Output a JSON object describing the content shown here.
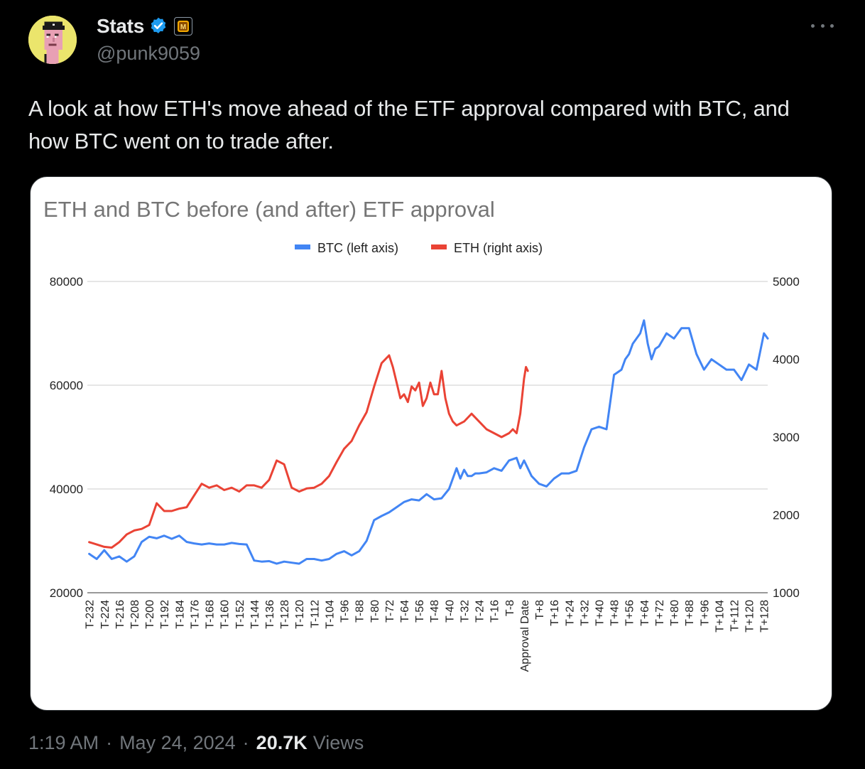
{
  "author": {
    "display_name": "Stats",
    "handle": "@punk9059",
    "verified_icon": "verified-badge-icon",
    "affiliate_icon": "affiliate-badge-icon",
    "affiliate_letter": "M"
  },
  "tweet": {
    "text": "A look at how ETH's move ahead of the ETF approval compared with BTC, and how BTC went on to trade after."
  },
  "meta": {
    "time": "1:19 AM",
    "date": "May 24, 2024",
    "separator": "·",
    "views_count": "20.7K",
    "views_label": "Views"
  },
  "colors": {
    "btc": "#4285f4",
    "eth": "#ea4335",
    "background": "#000000",
    "text": "#e7e9ea",
    "muted": "#71767b",
    "verified": "#1d9bf0"
  },
  "chart_data": {
    "type": "line",
    "title": "ETH and BTC before (and after) ETF approval",
    "legend": [
      "BTC (left axis)",
      "ETH (right axis)"
    ],
    "legend_position": "top",
    "grid": true,
    "x_range": [
      -233,
      130
    ],
    "left_axis": {
      "label": "BTC (left axis)",
      "ylim": [
        20000,
        80000
      ],
      "ticks": [
        "20000",
        "40000",
        "60000",
        "80000"
      ]
    },
    "right_axis": {
      "label": "ETH (right axis)",
      "ylim": [
        1000,
        5000
      ],
      "ticks": [
        "1000",
        "2000",
        "3000",
        "4000",
        "5000"
      ]
    },
    "x_tick_values": [
      -232,
      -224,
      -216,
      -208,
      -200,
      -192,
      -184,
      -176,
      -168,
      -160,
      -152,
      -144,
      -136,
      -128,
      -120,
      -112,
      -104,
      -96,
      -88,
      -80,
      -72,
      -64,
      -56,
      -48,
      -40,
      -32,
      -24,
      -16,
      -8,
      0,
      8,
      16,
      24,
      32,
      40,
      48,
      56,
      64,
      72,
      80,
      88,
      96,
      104,
      112,
      120,
      128
    ],
    "x_tick_labels": [
      "T-232",
      "T-224",
      "T-216",
      "T-208",
      "T-200",
      "T-192",
      "T-184",
      "T-176",
      "T-168",
      "T-160",
      "T-152",
      "T-144",
      "T-136",
      "T-128",
      "T-120",
      "T-112",
      "T-104",
      "T-96",
      "T-88",
      "T-80",
      "T-72",
      "T-64",
      "T-56",
      "T-48",
      "T-40",
      "T-32",
      "T-24",
      "T-16",
      "T-8",
      "Approval Date",
      "T+8",
      "T+16",
      "T+24",
      "T+32",
      "T+40",
      "T+48",
      "T+56",
      "T+64",
      "T+72",
      "T+80",
      "T+88",
      "T+96",
      "T+104",
      "T+112",
      "T+120",
      "T+128"
    ],
    "series": [
      {
        "name": "BTC (left axis)",
        "axis": "left",
        "x": [
          -232,
          -228,
          -224,
          -220,
          -216,
          -212,
          -208,
          -204,
          -200,
          -196,
          -192,
          -188,
          -184,
          -180,
          -176,
          -172,
          -168,
          -164,
          -160,
          -156,
          -152,
          -148,
          -144,
          -140,
          -136,
          -132,
          -128,
          -124,
          -120,
          -116,
          -112,
          -108,
          -104,
          -100,
          -96,
          -92,
          -88,
          -84,
          -80,
          -76,
          -72,
          -68,
          -64,
          -60,
          -56,
          -52,
          -48,
          -44,
          -40,
          -36,
          -34,
          -32,
          -30,
          -28,
          -26,
          -24,
          -20,
          -16,
          -12,
          -8,
          -4,
          -2,
          0,
          2,
          4,
          8,
          12,
          16,
          20,
          24,
          28,
          32,
          36,
          40,
          44,
          48,
          52,
          54,
          56,
          58,
          60,
          62,
          64,
          66,
          68,
          70,
          72,
          76,
          80,
          84,
          88,
          92,
          96,
          100,
          104,
          108,
          112,
          116,
          120,
          124,
          128,
          130
        ],
        "values": [
          27500,
          26500,
          28200,
          26500,
          27000,
          26000,
          27000,
          29800,
          30800,
          30500,
          31000,
          30400,
          31000,
          29800,
          29500,
          29300,
          29500,
          29300,
          29300,
          29600,
          29400,
          29300,
          26200,
          26000,
          26100,
          25600,
          26000,
          25800,
          25600,
          26500,
          26500,
          26200,
          26500,
          27500,
          28000,
          27200,
          28000,
          30000,
          34000,
          34800,
          35500,
          36500,
          37500,
          38000,
          37800,
          39000,
          38000,
          38200,
          40000,
          44000,
          42000,
          43700,
          42500,
          42500,
          43000,
          43000,
          43200,
          44000,
          43500,
          45500,
          46000,
          44000,
          45500,
          44000,
          42500,
          41000,
          40500,
          42000,
          43000,
          43000,
          43500,
          48000,
          51500,
          52000,
          51500,
          62000,
          63000,
          65000,
          66000,
          68000,
          69000,
          70000,
          72500,
          68000,
          65000,
          67000,
          67500,
          70000,
          69000,
          71000,
          71000,
          66000,
          63000,
          65000,
          64000,
          63000,
          63000,
          61000,
          64000,
          63000,
          70000,
          69000
        ]
      },
      {
        "name": "ETH (right axis)",
        "axis": "right",
        "x": [
          -232,
          -228,
          -224,
          -220,
          -216,
          -212,
          -208,
          -204,
          -200,
          -196,
          -192,
          -188,
          -184,
          -180,
          -176,
          -172,
          -168,
          -164,
          -160,
          -156,
          -152,
          -148,
          -144,
          -140,
          -136,
          -132,
          -128,
          -124,
          -120,
          -116,
          -112,
          -108,
          -104,
          -100,
          -96,
          -92,
          -88,
          -84,
          -80,
          -76,
          -72,
          -70,
          -68,
          -66,
          -64,
          -62,
          -60,
          -58,
          -56,
          -54,
          -52,
          -50,
          -48,
          -46,
          -44,
          -42,
          -40,
          -38,
          -36,
          -32,
          -28,
          -24,
          -20,
          -16,
          -12,
          -8,
          -6,
          -4,
          -2,
          0,
          1,
          2
        ],
        "values": [
          1650,
          1620,
          1590,
          1580,
          1650,
          1750,
          1800,
          1820,
          1870,
          2150,
          2050,
          2050,
          2080,
          2100,
          2250,
          2400,
          2350,
          2380,
          2320,
          2350,
          2300,
          2380,
          2380,
          2350,
          2450,
          2700,
          2650,
          2350,
          2300,
          2340,
          2350,
          2400,
          2500,
          2680,
          2850,
          2950,
          3150,
          3320,
          3650,
          3950,
          4050,
          3900,
          3700,
          3500,
          3550,
          3450,
          3650,
          3600,
          3700,
          3400,
          3500,
          3700,
          3550,
          3550,
          3850,
          3500,
          3300,
          3200,
          3150,
          3200,
          3300,
          3200,
          3100,
          3050,
          3000,
          3050,
          3100,
          3050,
          3300,
          3750,
          3900,
          3850
        ]
      }
    ]
  }
}
